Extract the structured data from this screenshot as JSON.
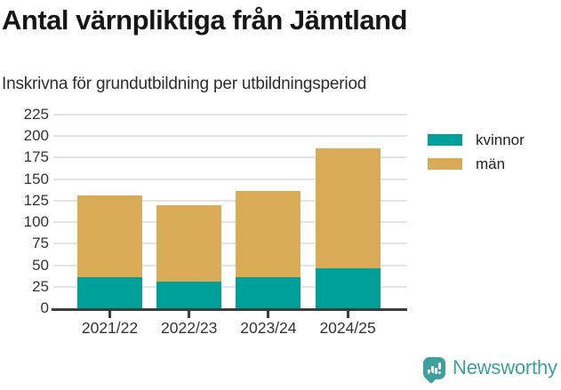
{
  "header": {
    "title": "Antal värnpliktiga från Jämtland",
    "subtitle": "Inskrivna för grundutbildning per utbildningsperiod"
  },
  "chart_data": {
    "type": "bar",
    "stacked": true,
    "title": "Antal värnpliktiga från Jämtland",
    "subtitle": "Inskrivna för grundutbildning per utbildningsperiod",
    "categories": [
      "2021/22",
      "2022/23",
      "2023/24",
      "2024/25"
    ],
    "series": [
      {
        "name": "kvinnor",
        "color": "#00a09a",
        "values": [
          36,
          31,
          36,
          46
        ]
      },
      {
        "name": "män",
        "color": "#d9ab57",
        "values": [
          95,
          89,
          100,
          140
        ]
      }
    ],
    "stacked_totals": [
      131,
      120,
      136,
      186
    ],
    "xlabel": "",
    "ylabel": "",
    "ylim": [
      0,
      229
    ],
    "yticks": [
      0,
      25,
      50,
      75,
      100,
      125,
      150,
      175,
      200,
      225
    ],
    "grid": true,
    "legend_position": "top-right"
  },
  "footer": {
    "brand": "Newsworthy",
    "brand_color": "#3ca19d",
    "logo_icon": "bar-chart-speech-bubble"
  }
}
